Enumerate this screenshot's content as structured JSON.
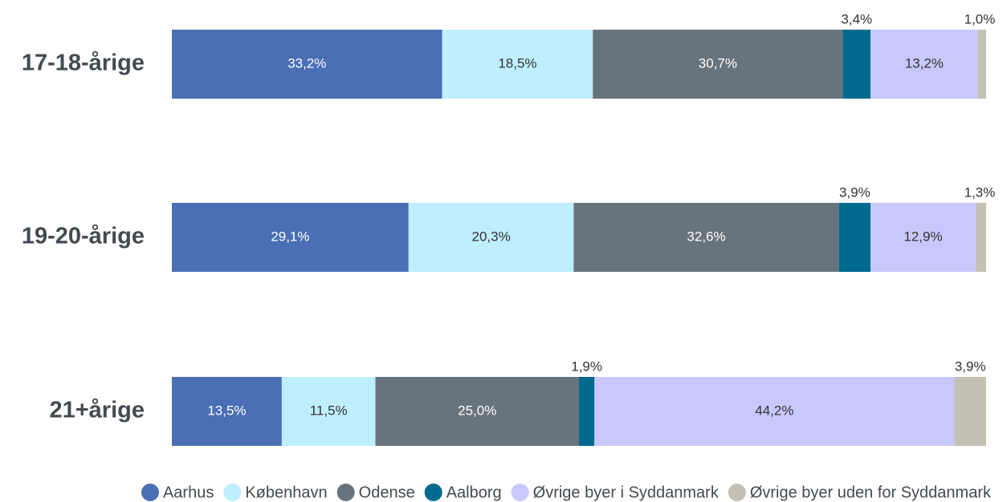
{
  "chart_data": {
    "type": "stacked-bar-horizontal",
    "categories": [
      "17-18-årige",
      "19-20-årige",
      "21+årige"
    ],
    "series": [
      {
        "name": "Aarhus",
        "color": "#4a6fb5",
        "values": [
          33.2,
          29.1,
          13.5
        ],
        "value_labels": [
          "33,2%",
          "29,1%",
          "13,5%"
        ]
      },
      {
        "name": "København",
        "color": "#bfeeff",
        "values": [
          18.5,
          20.3,
          11.5
        ],
        "value_labels": [
          "18,5%",
          "20,3%",
          "11,5%"
        ]
      },
      {
        "name": "Odense",
        "color": "#68747d",
        "values": [
          30.7,
          32.6,
          25.0
        ],
        "value_labels": [
          "30,7%",
          "32,6%",
          "25,0%"
        ]
      },
      {
        "name": "Aalborg",
        "color": "#006a8e",
        "values": [
          3.4,
          3.9,
          1.9
        ],
        "value_labels": [
          "3,4%",
          "3,9%",
          "1,9%"
        ]
      },
      {
        "name": "Øvrige byer i Syddanmark",
        "color": "#c8c8fc",
        "values": [
          13.2,
          12.9,
          44.2
        ],
        "value_labels": [
          "13,2%",
          "12,9%",
          "44,2%"
        ]
      },
      {
        "name": "Øvrige byer uden for Syddanmark",
        "color": "#c3c1b4",
        "values": [
          1.0,
          1.3,
          3.9
        ],
        "value_labels": [
          "1,0%",
          "1,3%",
          "3,9%"
        ]
      }
    ],
    "legend": "bottom"
  }
}
